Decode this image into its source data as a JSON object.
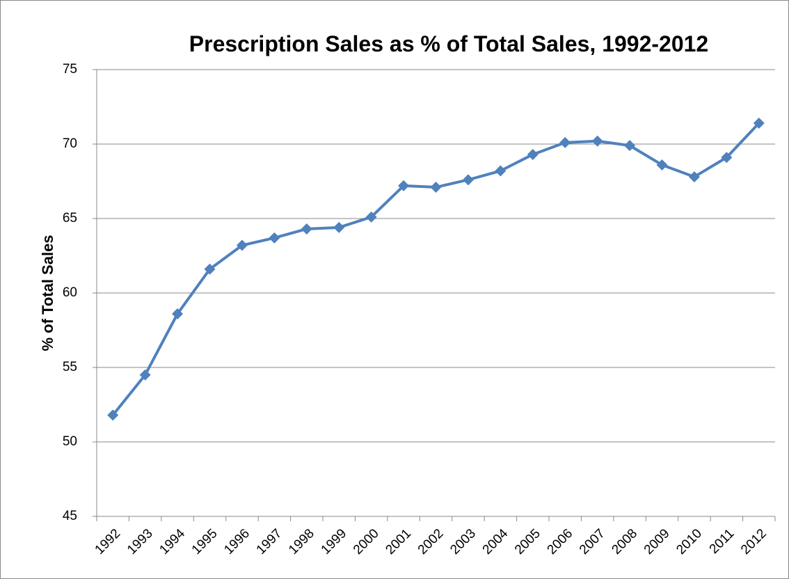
{
  "chart_data": {
    "type": "line",
    "title": "Prescription Sales as % of Total Sales, 1992-2012",
    "y_label": "% of Total Sales",
    "categories": [
      "1992",
      "1993",
      "1994",
      "1995",
      "1996",
      "1997",
      "1998",
      "1999",
      "2000",
      "2001",
      "2002",
      "2003",
      "2004",
      "2005",
      "2006",
      "2007",
      "2008",
      "2009",
      "2010",
      "2011",
      "2012"
    ],
    "series": [
      {
        "name": "Prescription Sales",
        "color": "#4f81bd",
        "values": [
          51.8,
          54.5,
          58.6,
          61.6,
          63.2,
          63.7,
          64.3,
          64.4,
          65.1,
          67.2,
          67.1,
          67.6,
          68.2,
          69.3,
          70.1,
          70.2,
          69.9,
          68.6,
          67.8,
          69.1,
          71.4
        ]
      }
    ],
    "ylim": [
      45,
      75
    ],
    "yticks": [
      45,
      50,
      55,
      60,
      65,
      70,
      75
    ],
    "grid": true
  }
}
